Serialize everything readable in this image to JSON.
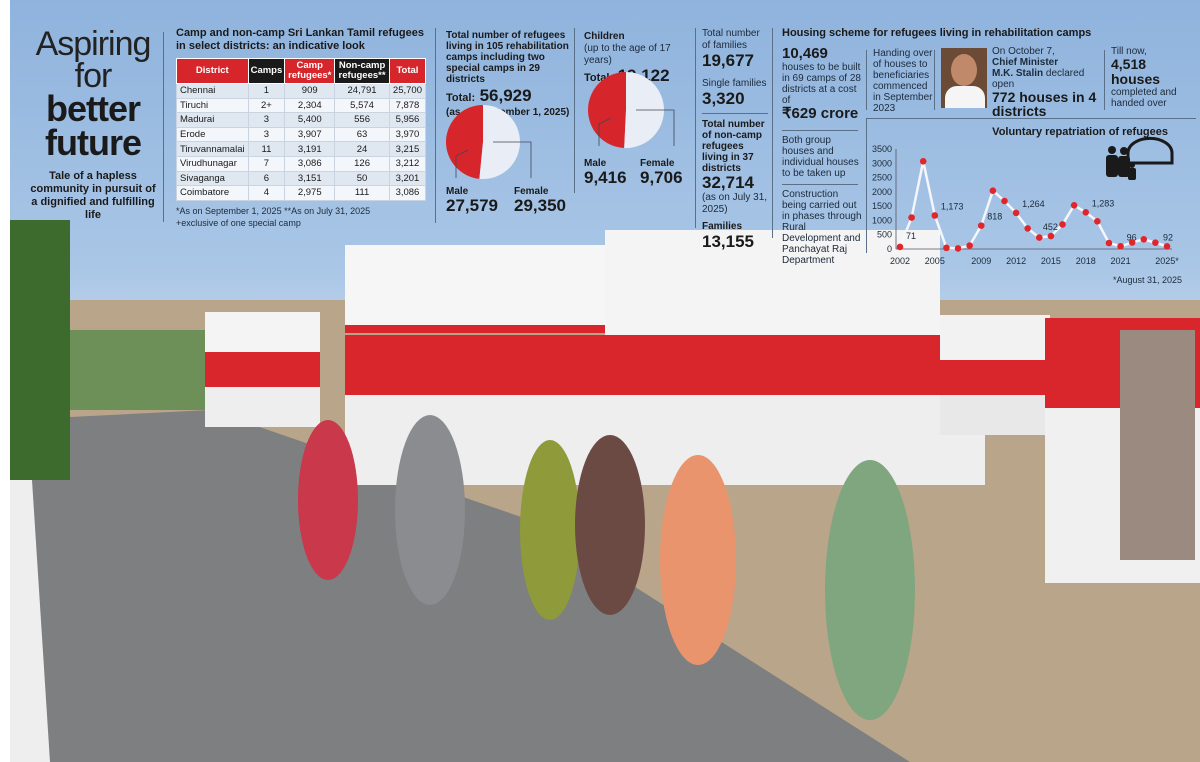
{
  "headline": {
    "line1": "Aspiring",
    "line2": "for",
    "line3": "better",
    "line4": "future",
    "subtitle": "Tale of a hapless community in pursuit of a dignified and fulfilling life"
  },
  "table": {
    "title": "Camp and non-camp Sri Lankan Tamil refugees in select districts: an indicative look",
    "headers": [
      "District",
      "Camps",
      "Camp refugees*",
      "Non-camp refugees**",
      "Total"
    ],
    "rows": [
      [
        "Chennai",
        "1",
        "909",
        "24,791",
        "25,700"
      ],
      [
        "Tiruchi",
        "2+",
        "2,304",
        "5,574",
        "7,878"
      ],
      [
        "Madurai",
        "3",
        "5,400",
        "556",
        "5,956"
      ],
      [
        "Erode",
        "3",
        "3,907",
        "63",
        "3,970"
      ],
      [
        "Tiruvannamalai",
        "11",
        "3,191",
        "24",
        "3,215"
      ],
      [
        "Virudhunagar",
        "7",
        "3,086",
        "126",
        "3,212"
      ],
      [
        "Sivaganga",
        "6",
        "3,151",
        "50",
        "3,201"
      ],
      [
        "Coimbatore",
        "4",
        "2,975",
        "111",
        "3,086"
      ]
    ],
    "footnote1": "*As on September 1, 2025   **As on July 31, 2025",
    "footnote2": "+exclusive of one special camp"
  },
  "refugees": {
    "heading": "Total number of refugees living in 105 rehabilitation camps including two special camps in 29 districts",
    "total_label": "Total:",
    "total": "56,929",
    "date": "(as on September 1, 2025)",
    "male_label": "Male",
    "male": "27,579",
    "female_label": "Female",
    "female": "29,350"
  },
  "children": {
    "heading": "Children",
    "sub": "(up to the age of 17 years)",
    "total_label": "Total:",
    "total": "19,122",
    "male_label": "Male",
    "male": "9,416",
    "female_label": "Female",
    "female": "9,706"
  },
  "families": {
    "label": "Total number of families",
    "value": "19,677",
    "single_label": "Single families",
    "single": "3,320",
    "noncamp_label": "Total number of non-camp refugees living in 37 districts",
    "noncamp": "32,714",
    "noncamp_date": "(as on July 31, 2025)",
    "fam_label": "Families",
    "fam": "13,155"
  },
  "housing": {
    "title": "Housing scheme for refugees living in rehabilitation camps",
    "houses": "10,469",
    "houses_text": "houses to be built in 69 camps of 28 districts at a cost of",
    "cost": "₹629 crore",
    "handover": "Handing over of houses to beneficiaries commenced in September 2023",
    "cm_1": "On October 7,",
    "cm_2": "Chief Minister",
    "cm_3": "M.K. Stalin",
    "cm_4": " declared open",
    "cm_big": "772 houses in 4 districts",
    "till": "Till now,",
    "completed": "4,518 houses",
    "completed_text": "completed and handed over",
    "both": "Both group houses and individual houses to be taken up",
    "construction": "Construction being carried out in phases through Rural Development and Panchayat Raj Department"
  },
  "colors": {
    "red": "#d7262b",
    "light": "#e9eef6",
    "point": "#e0262b"
  },
  "chart_data": [
    {
      "type": "line",
      "title": "Voluntary repatriation of refugees",
      "x": [
        2002,
        2003,
        2004,
        2005,
        2006,
        2007,
        2008,
        2009,
        2010,
        2011,
        2012,
        2013,
        2014,
        2015,
        2016,
        2017,
        2018,
        2019,
        2020,
        2021,
        2022,
        2023,
        2024,
        2025
      ],
      "values": [
        71,
        1100,
        3070,
        1173,
        40,
        20,
        120,
        818,
        2040,
        1680,
        1264,
        720,
        400,
        452,
        860,
        1530,
        1283,
        970,
        210,
        96,
        230,
        340,
        220,
        92
      ],
      "data_labels": {
        "2002": "71",
        "2005": "1,173",
        "2009": "818",
        "2012": "1,264",
        "2015": "452",
        "2018": "1,283",
        "2021": "96",
        "2025": "92"
      },
      "xticks": [
        "2002",
        "2005",
        "2009",
        "2012",
        "2015",
        "2018",
        "2021",
        "2025*"
      ],
      "yticks": [
        "0",
        "500",
        "1000",
        "1500",
        "2000",
        "2500",
        "3000",
        "3500"
      ],
      "ylim": [
        0,
        3500
      ],
      "note": "*August 31, 2025"
    },
    {
      "type": "pie",
      "labels": [
        "Male",
        "Female"
      ],
      "values": [
        27579,
        29350
      ]
    },
    {
      "type": "pie",
      "labels": [
        "Male",
        "Female"
      ],
      "values": [
        9416,
        9706
      ]
    }
  ]
}
